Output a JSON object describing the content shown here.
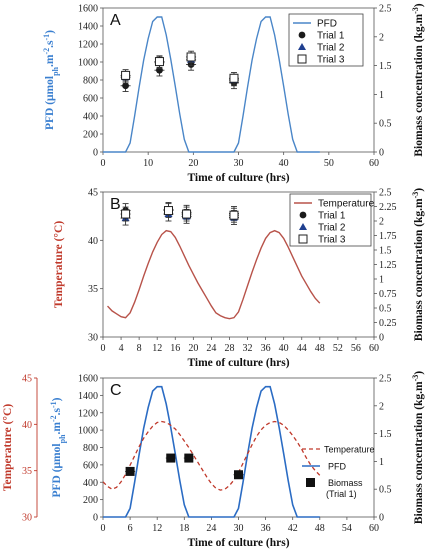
{
  "chart_data": [
    {
      "type": "line",
      "panel_label": "A",
      "xlabel": "Time of culture (hrs)",
      "ylabel_left": "PFD (μmolph.m-2.s-1)",
      "ylabel_left_parts": [
        "PFD (μmol",
        "ph",
        ".m",
        "-2",
        ".s",
        "-1",
        ")"
      ],
      "ylabel_right": "Biomass concentration (kg.m-3)",
      "xlim": [
        0,
        60
      ],
      "xticks": [
        0,
        10,
        20,
        30,
        40,
        50,
        60
      ],
      "ylim_left": [
        0,
        1600
      ],
      "yticks_left": [
        0,
        200,
        400,
        600,
        800,
        1000,
        1200,
        1400,
        1600
      ],
      "ylim_right": [
        0,
        2.5
      ],
      "yticks_right": [
        "0",
        "0.5",
        "1",
        "1.5",
        "2",
        "2.5"
      ],
      "legend": {
        "position": "top-right",
        "entries": [
          "PFD",
          "Trial 1",
          "Trial 2",
          "Trial 3"
        ]
      },
      "colors": {
        "pfd": "#4a86c8",
        "ylabel_left": "#3a7fd0",
        "markers": "#1b1b1b",
        "trial2": "#1f3f8f"
      },
      "pfd_series": {
        "name": "PFD",
        "x": [
          0,
          1,
          2,
          3,
          4,
          5,
          6,
          7,
          8,
          9,
          10,
          11,
          12,
          13,
          14,
          15,
          16,
          17,
          18,
          19,
          20,
          21,
          22,
          23,
          24,
          25,
          26,
          27,
          28,
          29,
          30,
          31,
          32,
          33,
          34,
          35,
          36,
          37,
          38,
          39,
          40,
          41,
          42,
          43,
          44,
          45,
          46,
          47,
          48
        ],
        "y": [
          0,
          0,
          0,
          0,
          0,
          0,
          100,
          400,
          720,
          1020,
          1260,
          1450,
          1500,
          1500,
          1300,
          1030,
          730,
          420,
          140,
          0,
          0,
          0,
          0,
          0,
          0,
          0,
          0,
          0,
          0,
          0,
          100,
          400,
          720,
          1020,
          1260,
          1450,
          1500,
          1500,
          1300,
          1030,
          730,
          420,
          140,
          0,
          0,
          0,
          0,
          0,
          0
        ]
      },
      "biomass_series": [
        {
          "name": "Trial 1",
          "marker": "circle",
          "points": [
            {
              "x": 5,
              "y": 1.15
            },
            {
              "x": 12.5,
              "y": 1.42
            },
            {
              "x": 19.5,
              "y": 1.52
            },
            {
              "x": 29,
              "y": 1.2
            }
          ]
        },
        {
          "name": "Trial 2",
          "marker": "triangle",
          "points": [
            {
              "x": 5,
              "y": 1.3
            },
            {
              "x": 12.5,
              "y": 1.55
            },
            {
              "x": 19.5,
              "y": 1.6
            },
            {
              "x": 29,
              "y": 1.25
            }
          ]
        },
        {
          "name": "Trial 3",
          "marker": "open-square",
          "points": [
            {
              "x": 5,
              "y": 1.33
            },
            {
              "x": 12.5,
              "y": 1.57
            },
            {
              "x": 19.5,
              "y": 1.65
            },
            {
              "x": 29,
              "y": 1.28
            }
          ]
        }
      ],
      "error_bar": 0.1
    },
    {
      "type": "line",
      "panel_label": "B",
      "xlabel": "Time of culture (hrs)",
      "ylabel_left": "Temperature (°C)",
      "ylabel_right": "Biomass concentration (kg.m-3)",
      "xlim": [
        0,
        60
      ],
      "xticks": [
        0,
        4,
        8,
        12,
        16,
        20,
        24,
        28,
        32,
        36,
        40,
        44,
        48,
        52,
        56,
        60
      ],
      "ylim_left": [
        30,
        45
      ],
      "yticks_left": [
        30,
        35,
        40,
        45
      ],
      "ylim_right": [
        0,
        2.5
      ],
      "yticks_right": [
        "0",
        "0.25",
        "0.5",
        "0.75",
        "1",
        "1.25",
        "1.5",
        "1.75",
        "2",
        "2.25",
        "2.5"
      ],
      "legend": {
        "position": "top-right",
        "entries": [
          "Temperature",
          "Trial 1",
          "Trial 2",
          "Trial 3"
        ]
      },
      "colors": {
        "temperature": "#b8534a",
        "ylabel_left": "#c0392b",
        "markers": "#1b1b1b",
        "trial2": "#1f3f8f"
      },
      "temperature_series": {
        "name": "Temperature",
        "x": [
          1,
          2,
          3,
          4,
          5,
          6,
          7,
          8,
          9,
          10,
          11,
          12,
          13,
          14,
          15,
          16,
          17,
          18,
          19,
          20,
          21,
          22,
          23,
          24,
          25,
          26,
          27,
          28,
          29,
          30,
          31,
          32,
          33,
          34,
          35,
          36,
          37,
          38,
          39,
          40,
          41,
          42,
          43,
          44,
          45,
          46,
          47,
          48
        ],
        "y": [
          33.2,
          32.7,
          32.4,
          32.1,
          32.0,
          32.5,
          33.6,
          34.9,
          36.3,
          37.6,
          38.8,
          39.8,
          40.6,
          41.0,
          40.9,
          40.3,
          39.4,
          38.4,
          37.4,
          36.5,
          35.6,
          34.8,
          34.0,
          33.2,
          32.5,
          32.2,
          32.0,
          31.9,
          32.0,
          32.6,
          33.9,
          35.3,
          36.7,
          38.0,
          39.2,
          40.2,
          40.8,
          41.0,
          40.8,
          40.2,
          39.3,
          38.3,
          37.3,
          36.3,
          35.5,
          34.7,
          34.0,
          33.5
        ]
      },
      "biomass_series": [
        {
          "name": "Trial 1",
          "marker": "circle",
          "points": [
            {
              "x": 5,
              "y": 2.18
            },
            {
              "x": 14.5,
              "y": 2.2
            },
            {
              "x": 18.5,
              "y": 2.15
            },
            {
              "x": 29,
              "y": 2.13
            }
          ]
        },
        {
          "name": "Trial 2",
          "marker": "triangle",
          "points": [
            {
              "x": 5,
              "y": 2.05
            },
            {
              "x": 14.5,
              "y": 2.12
            },
            {
              "x": 18.5,
              "y": 2.08
            },
            {
              "x": 29,
              "y": 2.06
            }
          ]
        },
        {
          "name": "Trial 3",
          "marker": "open-square",
          "points": [
            {
              "x": 5,
              "y": 2.12
            },
            {
              "x": 14.5,
              "y": 2.18
            },
            {
              "x": 18.5,
              "y": 2.12
            },
            {
              "x": 29,
              "y": 2.1
            }
          ]
        }
      ],
      "error_bar": 0.12
    },
    {
      "type": "line",
      "panel_label": "C",
      "xlabel": "Time of culture (hrs)",
      "ylabel_left_outer": "Temperature (°C)",
      "ylabel_left": "PFD (μmolph.m-2.s-1)",
      "ylabel_left_parts": [
        "PFD (μmol",
        "ph",
        ".m",
        "-2",
        ".s",
        "-1",
        ")"
      ],
      "ylabel_right": "Biomass concentration (kg.m-3)",
      "xlim": [
        0,
        60
      ],
      "xticks": [
        0,
        6,
        12,
        18,
        24,
        30,
        36,
        42,
        48,
        54,
        60
      ],
      "ylim_left": [
        0,
        1600
      ],
      "yticks_left": [
        0,
        200,
        400,
        600,
        800,
        1000,
        1200,
        1400,
        1600
      ],
      "ylim_outer": [
        30,
        45
      ],
      "yticks_outer": [
        30,
        35,
        40,
        45
      ],
      "ylim_right": [
        0,
        2.5
      ],
      "yticks_right": [
        "0",
        "0.5",
        "1",
        "1.5",
        "2",
        "2.5"
      ],
      "legend": {
        "position": "bottom-right",
        "entries": [
          "Temperature",
          "PFD",
          "Biomass",
          "(Trial 1)"
        ]
      },
      "colors": {
        "pfd": "#2b6cc4",
        "temperature": "#c0392b",
        "ylabel_left": "#3a7fd0",
        "ylabel_outer": "#c0392b",
        "markers": "#111111"
      },
      "pfd_series": {
        "name": "PFD",
        "x": [
          0,
          1,
          2,
          3,
          4,
          5,
          6,
          7,
          8,
          9,
          10,
          11,
          12,
          13,
          14,
          15,
          16,
          17,
          18,
          19,
          20,
          21,
          22,
          23,
          24,
          25,
          26,
          27,
          28,
          29,
          30,
          31,
          32,
          33,
          34,
          35,
          36,
          37,
          38,
          39,
          40,
          41,
          42,
          43,
          44,
          45,
          46,
          47,
          48
        ],
        "y": [
          0,
          0,
          0,
          0,
          0,
          0,
          100,
          400,
          720,
          1020,
          1260,
          1450,
          1500,
          1500,
          1300,
          1030,
          730,
          420,
          140,
          0,
          0,
          0,
          0,
          0,
          0,
          0,
          0,
          0,
          0,
          0,
          100,
          400,
          720,
          1020,
          1260,
          1450,
          1500,
          1500,
          1300,
          1030,
          730,
          420,
          140,
          0,
          0,
          0,
          0,
          0,
          0
        ]
      },
      "temperature_series": {
        "name": "Temperature",
        "x": [
          0,
          1,
          2,
          3,
          4,
          5,
          6,
          7,
          8,
          9,
          10,
          11,
          12,
          13,
          14,
          15,
          16,
          17,
          18,
          19,
          20,
          21,
          22,
          23,
          24,
          25,
          26,
          27,
          28,
          29,
          30,
          31,
          32,
          33,
          34,
          35,
          36,
          37,
          38,
          39,
          40,
          41,
          42,
          43,
          44,
          45,
          46,
          47,
          48
        ],
        "y": [
          33.8,
          33.3,
          33.0,
          33.2,
          33.8,
          34.6,
          35.6,
          36.6,
          37.6,
          38.5,
          39.2,
          39.8,
          40.2,
          40.3,
          40.2,
          39.9,
          39.5,
          38.9,
          38.2,
          37.5,
          36.7,
          35.9,
          35.1,
          34.3,
          33.6,
          33.1,
          32.9,
          33.0,
          33.4,
          34.0,
          34.8,
          35.8,
          36.8,
          37.8,
          38.7,
          39.4,
          39.9,
          40.2,
          40.3,
          40.2,
          39.9,
          39.4,
          38.8,
          38.1,
          37.3,
          36.4,
          35.6,
          35.0,
          34.5
        ]
      },
      "biomass_series": [
        {
          "name": "Biomass (Trial 1)",
          "marker": "filled-square",
          "points": [
            {
              "x": 6,
              "y": 0.82
            },
            {
              "x": 15,
              "y": 1.06
            },
            {
              "x": 19,
              "y": 1.06
            },
            {
              "x": 30,
              "y": 0.76
            }
          ]
        }
      ],
      "error_bar": 0.05
    }
  ]
}
